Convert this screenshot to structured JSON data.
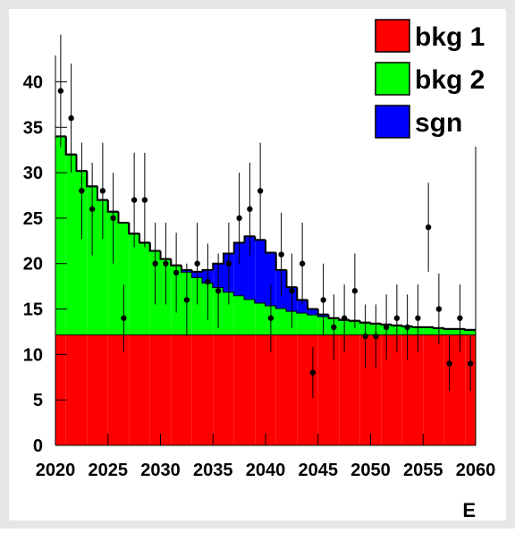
{
  "chart_data": {
    "type": "stacked_histogram",
    "bins": [
      2020,
      2021,
      2022,
      2023,
      2024,
      2025,
      2026,
      2027,
      2028,
      2029,
      2030,
      2031,
      2032,
      2033,
      2034,
      2035,
      2036,
      2037,
      2038,
      2039,
      2040,
      2041,
      2042,
      2043,
      2044,
      2045,
      2046,
      2047,
      2048,
      2049,
      2050,
      2051,
      2052,
      2053,
      2054,
      2055,
      2056,
      2057,
      2058,
      2059,
      2060
    ],
    "series": [
      {
        "name": "bkg 1",
        "color": "#ff0000",
        "values": [
          12.2,
          12.2,
          12.2,
          12.2,
          12.2,
          12.2,
          12.2,
          12.2,
          12.2,
          12.2,
          12.2,
          12.2,
          12.2,
          12.2,
          12.2,
          12.2,
          12.2,
          12.2,
          12.2,
          12.2,
          12.2,
          12.2,
          12.2,
          12.2,
          12.2,
          12.2,
          12.2,
          12.2,
          12.2,
          12.2,
          12.2,
          12.2,
          12.2,
          12.2,
          12.2,
          12.2,
          12.2,
          12.2,
          12.2,
          12.2
        ]
      },
      {
        "name": "bkg 2",
        "color": "#00ff00",
        "values": [
          21.8,
          19.8,
          18.0,
          16.3,
          14.8,
          13.5,
          12.3,
          11.1,
          10.1,
          9.2,
          8.3,
          7.6,
          6.9,
          6.3,
          5.7,
          5.2,
          4.7,
          4.3,
          3.9,
          3.5,
          3.2,
          2.9,
          2.6,
          2.4,
          2.2,
          2.0,
          1.8,
          1.6,
          1.5,
          1.3,
          1.2,
          1.1,
          1.0,
          0.9,
          0.8,
          0.8,
          0.7,
          0.6,
          0.6,
          0.5
        ]
      },
      {
        "name": "sgn",
        "color": "#0000ff",
        "values": [
          0,
          0,
          0,
          0,
          0,
          0,
          0,
          0,
          0,
          0,
          0,
          0,
          0.2,
          0.6,
          1.4,
          2.6,
          4.2,
          5.8,
          6.9,
          6.9,
          5.8,
          4.2,
          2.6,
          1.4,
          0.6,
          0.2,
          0,
          0,
          0,
          0,
          0,
          0,
          0,
          0,
          0,
          0,
          0,
          0,
          0,
          0
        ]
      }
    ],
    "points": {
      "values": [
        39,
        36,
        28,
        26,
        28,
        25,
        14,
        27,
        27,
        20,
        20,
        19,
        16,
        20,
        18,
        17,
        20,
        25,
        26,
        28,
        14,
        21,
        17,
        20,
        8,
        16,
        13,
        14,
        17,
        12,
        12,
        13,
        14,
        13,
        14,
        24,
        15,
        9,
        14,
        9
      ],
      "errors": [
        6.2,
        6.0,
        5.3,
        5.1,
        5.3,
        5.0,
        3.7,
        5.2,
        5.2,
        4.5,
        4.5,
        4.4,
        4.0,
        4.5,
        4.2,
        4.1,
        4.5,
        5.0,
        5.1,
        5.3,
        3.7,
        4.6,
        4.1,
        4.5,
        2.8,
        4.0,
        3.6,
        3.7,
        4.1,
        3.5,
        3.5,
        3.6,
        3.7,
        3.6,
        3.7,
        4.9,
        3.9,
        3.0,
        3.7,
        3.0
      ]
    },
    "xlabel": "E",
    "xlim": [
      2020,
      2060
    ],
    "xticks": [
      2020,
      2025,
      2030,
      2035,
      2040,
      2045,
      2050,
      2055,
      2060
    ],
    "ylim": [
      0,
      42.9
    ],
    "yticks": [
      0,
      5,
      10,
      15,
      20,
      25,
      30,
      35,
      40
    ]
  }
}
